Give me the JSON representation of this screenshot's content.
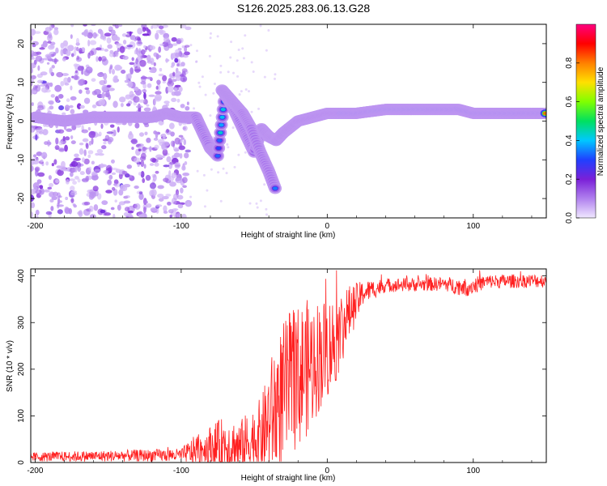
{
  "title": "S126.2025.283.06.13.G28",
  "chart_data": [
    {
      "type": "heatmap",
      "xlabel": "Height of straight line (km)",
      "ylabel": "Frequency (Hz)",
      "xlim": [
        -203,
        150
      ],
      "ylim": [
        -25,
        25
      ],
      "xticks": [
        -200,
        -100,
        0,
        100
      ],
      "yticks": [
        -20,
        -10,
        0,
        10,
        20
      ],
      "colorbar": {
        "label": "Normalized spectral amplitude",
        "range": [
          0,
          1
        ],
        "ticks": [
          "0.0",
          "0.2",
          "0.4",
          "0.6",
          "0.8"
        ],
        "colormap": [
          "#f0e8ff",
          "#b080ee",
          "#7a20d8",
          "#2040ff",
          "#00c8ff",
          "#00e060",
          "#80ff00",
          "#ffe000",
          "#ff8000",
          "#ff0000",
          "#ff0080"
        ]
      },
      "ridge": [
        {
          "x": -200,
          "f": 1
        },
        {
          "x": -180,
          "f": 0
        },
        {
          "x": -160,
          "f": 1
        },
        {
          "x": -140,
          "f": 1
        },
        {
          "x": -120,
          "f": 1
        },
        {
          "x": -110,
          "f": 2
        },
        {
          "x": -100,
          "f": 1
        },
        {
          "x": -90,
          "f": 1
        },
        {
          "x": -85,
          "f": -3
        },
        {
          "x": -80,
          "f": -7
        },
        {
          "x": -75,
          "f": -9
        },
        {
          "x": -70,
          "f": 7
        },
        {
          "x": -65,
          "f": 4
        },
        {
          "x": -60,
          "f": 0
        },
        {
          "x": -55,
          "f": -4
        },
        {
          "x": -50,
          "f": -8
        },
        {
          "x": -45,
          "f": -2
        },
        {
          "x": -40,
          "f": -4
        },
        {
          "x": -35,
          "f": -5
        },
        {
          "x": -30,
          "f": -3
        },
        {
          "x": -20,
          "f": 0
        },
        {
          "x": -10,
          "f": 1
        },
        {
          "x": 0,
          "f": 2
        },
        {
          "x": 10,
          "f": 2
        },
        {
          "x": 20,
          "f": 2
        },
        {
          "x": 40,
          "f": 3
        },
        {
          "x": 60,
          "f": 3
        },
        {
          "x": 80,
          "f": 3
        },
        {
          "x": 90,
          "f": 3
        },
        {
          "x": 100,
          "f": 2
        },
        {
          "x": 120,
          "f": 2
        },
        {
          "x": 140,
          "f": 2
        },
        {
          "x": 150,
          "f": 2
        }
      ],
      "branch": [
        {
          "x": -72,
          "f": 8
        },
        {
          "x": -65,
          "f": 5
        },
        {
          "x": -58,
          "f": 2
        },
        {
          "x": -52,
          "f": -2
        },
        {
          "x": -46,
          "f": -8
        },
        {
          "x": -40,
          "f": -13
        },
        {
          "x": -35,
          "f": -18
        }
      ]
    },
    {
      "type": "line",
      "xlabel": "Height of straight line (km)",
      "ylabel": "SNR (10 * v/v)",
      "xlim": [
        -203,
        150
      ],
      "ylim": [
        0,
        415
      ],
      "xticks": [
        -200,
        -100,
        0,
        100
      ],
      "yticks": [
        0,
        100,
        200,
        300,
        400
      ],
      "color": "#ff2020",
      "envelope": [
        {
          "x": -203,
          "mean": 12,
          "amp": 10
        },
        {
          "x": -150,
          "mean": 14,
          "amp": 12
        },
        {
          "x": -100,
          "mean": 16,
          "amp": 14
        },
        {
          "x": -90,
          "mean": 25,
          "amp": 35
        },
        {
          "x": -70,
          "mean": 40,
          "amp": 60
        },
        {
          "x": -60,
          "mean": 30,
          "amp": 60
        },
        {
          "x": -45,
          "mean": 60,
          "amp": 80
        },
        {
          "x": -35,
          "mean": 120,
          "amp": 150
        },
        {
          "x": -25,
          "mean": 170,
          "amp": 160
        },
        {
          "x": -15,
          "mean": 200,
          "amp": 150
        },
        {
          "x": -5,
          "mean": 230,
          "amp": 120
        },
        {
          "x": 5,
          "mean": 260,
          "amp": 100
        },
        {
          "x": 15,
          "mean": 320,
          "amp": 60
        },
        {
          "x": 25,
          "mean": 365,
          "amp": 25
        },
        {
          "x": 40,
          "mean": 380,
          "amp": 15
        },
        {
          "x": 80,
          "mean": 383,
          "amp": 15
        },
        {
          "x": 95,
          "mean": 375,
          "amp": 20
        },
        {
          "x": 110,
          "mean": 388,
          "amp": 15
        },
        {
          "x": 150,
          "mean": 390,
          "amp": 15
        }
      ]
    }
  ]
}
